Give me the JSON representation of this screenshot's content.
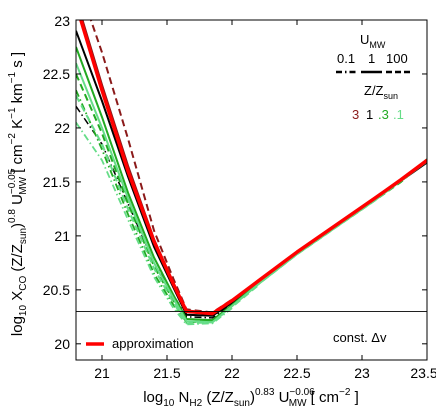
{
  "chart_data": {
    "type": "line",
    "xlabel_parts": {
      "log": "log",
      "log_sub": "10",
      "n": " N",
      "n_sub": "H2",
      "z1": " (Z/Z",
      "z_sub": "sun",
      "z2": ")",
      "z_exp": "0.83",
      "u": " U",
      "u_exp": "−0.06",
      "u_sub": "MW",
      "unit": " [ cm",
      "unit_exp": "−2",
      "close": " ]"
    },
    "ylabel_parts": {
      "log": "log",
      "log_sub": "10",
      "x": " X",
      "x_sub": "CO",
      "z1": " (Z/Z",
      "z_sub": "sun",
      "z2": ")",
      "z_exp": "0.8",
      "u": " U",
      "u_exp": "−0.05",
      "u_sub": "MW",
      "unit": " [ cm",
      "unit_exp1": "−2",
      "k": " K",
      "unit_exp2": "−1",
      "km": " km",
      "unit_exp3": "−1",
      "s": " s ]"
    },
    "xlim": [
      20.8,
      23.5
    ],
    "ylim": [
      19.85,
      23
    ],
    "xticks": [
      21,
      21.5,
      22,
      22.5,
      23,
      23.5
    ],
    "xtick_labels": [
      "21",
      "21.5",
      "22",
      "22.5",
      "23",
      "23.5"
    ],
    "yticks": [
      20,
      20.5,
      21,
      21.5,
      22,
      22.5,
      23
    ],
    "ytick_labels": [
      "20",
      "20.5",
      "21",
      "21.5",
      "22",
      "22.5",
      "23"
    ],
    "hline": 20.3,
    "legend_umw": {
      "title": "U",
      "title_sub": "MW",
      "values": [
        "0.1",
        "1",
        "100"
      ],
      "styles": [
        "dashdot",
        "solid",
        "dashed"
      ]
    },
    "legend_z": {
      "title": "Z/Z",
      "title_sub": "sun",
      "values": [
        "3",
        "1",
        ".3",
        ".1"
      ],
      "colors": [
        "#8b1a1a",
        "#000000",
        "#22aa22",
        "#66dd88"
      ]
    },
    "annotation": "const. Δv",
    "approx_label": "approximation",
    "series": [
      {
        "name": "approximation",
        "color": "#ff0000",
        "style": "solid",
        "width": 3.5,
        "x": [
          20.8,
          21.0,
          21.2,
          21.4,
          21.55,
          21.65,
          21.85,
          22.0,
          22.2,
          22.5,
          22.8,
          23.1,
          23.3,
          23.5
        ],
        "y": [
          23.15,
          22.35,
          21.6,
          20.95,
          20.55,
          20.3,
          20.28,
          20.4,
          20.58,
          20.85,
          21.1,
          21.35,
          21.52,
          21.7
        ]
      },
      {
        "color": "#000000",
        "style": "solid",
        "width": 2,
        "x": [
          20.8,
          21.0,
          21.2,
          21.4,
          21.55,
          21.65,
          21.85,
          22.0,
          22.2,
          22.5,
          22.8,
          23.1,
          23.3,
          23.5
        ],
        "y": [
          22.9,
          22.25,
          21.55,
          20.9,
          20.52,
          20.27,
          20.26,
          20.38,
          20.57,
          20.84,
          21.09,
          21.34,
          21.51,
          21.68
        ]
      },
      {
        "color": "#000000",
        "style": "dashdot",
        "width": 1.5,
        "x": [
          20.8,
          21.0,
          21.2,
          21.4,
          21.55,
          21.65,
          21.85,
          22.0,
          22.2,
          22.5
        ],
        "y": [
          22.2,
          21.85,
          21.3,
          20.75,
          20.45,
          20.25,
          20.24,
          20.37,
          20.56,
          20.83
        ]
      },
      {
        "color": "#8b1a1a",
        "style": "dashed",
        "width": 2,
        "x": [
          20.9,
          21.0,
          21.2,
          21.4,
          21.55,
          21.65,
          21.85,
          22.0
        ],
        "y": [
          23.05,
          22.7,
          21.9,
          21.05,
          20.6,
          20.32,
          20.29,
          20.41
        ]
      },
      {
        "color": "#8b1a1a",
        "style": "solid",
        "width": 2,
        "x": [
          20.85,
          21.0,
          21.2,
          21.4,
          21.55,
          21.65,
          21.85,
          22.0
        ],
        "y": [
          23.0,
          22.4,
          21.65,
          20.97,
          20.56,
          20.31,
          20.28,
          20.4
        ]
      },
      {
        "color": "#22aa22",
        "style": "solid",
        "width": 2,
        "x": [
          20.8,
          21.0,
          21.2,
          21.4,
          21.55,
          21.65,
          21.85,
          22.0,
          22.2,
          22.5,
          22.8,
          23.1,
          23.3,
          23.5
        ],
        "y": [
          22.75,
          22.1,
          21.4,
          20.8,
          20.45,
          20.23,
          20.22,
          20.36,
          20.56,
          20.84,
          21.09,
          21.34,
          21.51,
          21.7
        ]
      },
      {
        "color": "#22aa22",
        "style": "dashed",
        "width": 2,
        "x": [
          20.8,
          21.0,
          21.2,
          21.4,
          21.55,
          21.65,
          21.85,
          22.0,
          22.2,
          22.5,
          22.8,
          23.1,
          23.3,
          23.5
        ],
        "y": [
          22.5,
          21.95,
          21.3,
          20.72,
          20.4,
          20.2,
          20.21,
          20.35,
          20.55,
          20.83,
          21.08,
          21.33,
          21.5,
          21.71
        ]
      },
      {
        "color": "#22aa22",
        "style": "dashdot",
        "width": 1.8,
        "x": [
          20.8,
          21.0,
          21.2,
          21.4,
          21.55,
          21.65,
          21.85,
          22.0,
          22.2
        ],
        "y": [
          22.35,
          21.8,
          21.2,
          20.65,
          20.36,
          20.2,
          20.21,
          20.35,
          20.55
        ]
      },
      {
        "color": "#66dd88",
        "style": "solid",
        "width": 2,
        "x": [
          20.8,
          21.0,
          21.2,
          21.4,
          21.55,
          21.65,
          21.85,
          22.0,
          22.2,
          22.5,
          22.8,
          23.1,
          23.3,
          23.5
        ],
        "y": [
          22.6,
          22.0,
          21.35,
          20.75,
          20.42,
          20.21,
          20.2,
          20.35,
          20.55,
          20.83,
          21.08,
          21.33,
          21.51,
          21.69
        ]
      },
      {
        "color": "#66dd88",
        "style": "dashed",
        "width": 2,
        "x": [
          20.8,
          21.0,
          21.2,
          21.4,
          21.55,
          21.65,
          21.85,
          22.0,
          22.2
        ],
        "y": [
          22.3,
          21.85,
          21.25,
          20.7,
          20.38,
          20.19,
          20.2,
          20.34,
          20.54
        ]
      },
      {
        "color": "#66dd88",
        "style": "dashdot",
        "width": 1.8,
        "x": [
          20.8,
          21.0,
          21.2,
          21.4,
          21.55,
          21.65,
          21.85,
          22.0
        ],
        "y": [
          22.05,
          21.7,
          21.15,
          20.62,
          20.33,
          20.18,
          20.19,
          20.33
        ]
      }
    ]
  }
}
